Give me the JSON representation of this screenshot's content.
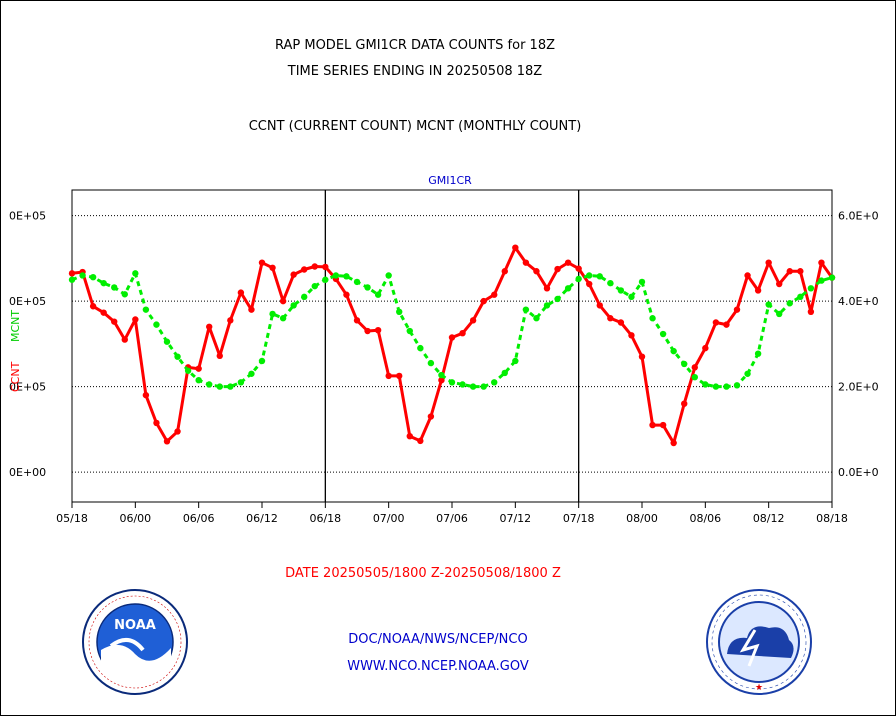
{
  "header": {
    "title_line1": "RAP MODEL GMI1CR DATA COUNTS for 18Z",
    "title_line2": "TIME SERIES ENDING IN 20250508 18Z",
    "subtitle": "CCNT (CURRENT COUNT) MCNT (MONTHLY COUNT)"
  },
  "footer": {
    "date_range": "DATE 20250505/1800 Z-20250508/1800 Z",
    "org": "DOC/NOAA/NWS/NCEP/NCO",
    "url": "WWW.NCO.NCEP.NOAA.GOV",
    "left_logo": "noaa-logo",
    "right_logo": "nws-logo",
    "noaa_logo_text": "NOAA"
  },
  "colors": {
    "ccnt": "#ff0000",
    "mcnt": "#00ee00",
    "label": "#0000cc",
    "axis": "#000000"
  },
  "chart_data": {
    "type": "line",
    "title": "GMI1CR",
    "ylabel_left_red": "CCNT",
    "ylabel_left_green": "MCNT",
    "x_tick_labels": [
      "05/18",
      "06/00",
      "06/06",
      "06/12",
      "06/18",
      "07/00",
      "07/06",
      "07/12",
      "07/18",
      "08/00",
      "08/06",
      "08/12",
      "08/18"
    ],
    "x_range_hours": [
      0,
      72
    ],
    "y_ticks_left": [
      "0E+00",
      "0E+05",
      "0E+05",
      "0E+05"
    ],
    "y_ticks_right": [
      "0.0E+0",
      "2.0E+0",
      "4.0E+0",
      "6.0E+0"
    ],
    "ylim": [
      -70000,
      660000
    ],
    "grid": "horizontal-dotted",
    "series": [
      {
        "name": "CCNT",
        "color": "#ff0000",
        "x": [
          0,
          1,
          2,
          3,
          4,
          5,
          6,
          7,
          8,
          9,
          10,
          11,
          12,
          13,
          14,
          15,
          16,
          17,
          18,
          19,
          20,
          21,
          22,
          23,
          24,
          25,
          26,
          27,
          28,
          29,
          30,
          31,
          32,
          33,
          34,
          35,
          36,
          37,
          38,
          39,
          40,
          41,
          42,
          43,
          44,
          45,
          46,
          47,
          48,
          49,
          50,
          51,
          52,
          53,
          54,
          55,
          56,
          57,
          58,
          59,
          60,
          61,
          62,
          63,
          64,
          65,
          66,
          67,
          68,
          69,
          70,
          71,
          72
        ],
        "values": [
          465000,
          468000,
          388000,
          373000,
          352000,
          310000,
          357000,
          180000,
          115000,
          72000,
          95000,
          245000,
          242000,
          340000,
          272000,
          355000,
          420000,
          380000,
          490000,
          478000,
          400000,
          462000,
          474000,
          481000,
          480000,
          452000,
          415000,
          355000,
          330000,
          332000,
          225000,
          225000,
          84000,
          73000,
          130000,
          215000,
          315000,
          325000,
          355000,
          400000,
          415000,
          470000,
          525000,
          490000,
          470000,
          430000,
          475000,
          490000,
          476000,
          440000,
          390000,
          360000,
          350000,
          320000,
          270000,
          110000,
          110000,
          68000,
          160000,
          245000,
          290000,
          350000,
          345000,
          380000,
          460000,
          425000,
          490000,
          440000,
          470000,
          470000,
          375000,
          490000,
          455000
        ]
      },
      {
        "name": "MCNT",
        "color": "#00ee00",
        "x": [
          0,
          1,
          2,
          3,
          4,
          5,
          6,
          7,
          8,
          9,
          10,
          11,
          12,
          13,
          14,
          15,
          16,
          17,
          18,
          19,
          20,
          21,
          22,
          23,
          24,
          25,
          26,
          27,
          28,
          29,
          30,
          31,
          32,
          33,
          34,
          35,
          36,
          37,
          38,
          39,
          40,
          41,
          42,
          43,
          44,
          45,
          46,
          47,
          48,
          49,
          50,
          51,
          52,
          53,
          54,
          55,
          56,
          57,
          58,
          59,
          60,
          61,
          62,
          63,
          64,
          65,
          66,
          67,
          68,
          69,
          70,
          71,
          72
        ],
        "values": [
          450000,
          460000,
          456000,
          442000,
          432000,
          416000,
          465000,
          380000,
          345000,
          305000,
          270000,
          237000,
          215000,
          205000,
          200000,
          200000,
          210000,
          230000,
          260000,
          370000,
          360000,
          390000,
          410000,
          435000,
          450000,
          460000,
          458000,
          445000,
          432000,
          415000,
          460000,
          375000,
          330000,
          290000,
          255000,
          227000,
          210000,
          205000,
          200000,
          200000,
          210000,
          232000,
          260000,
          380000,
          360000,
          390000,
          405000,
          430000,
          452000,
          460000,
          458000,
          442000,
          425000,
          410000,
          445000,
          360000,
          323000,
          283000,
          253000,
          222000,
          205000,
          200000,
          200000,
          203000,
          230000,
          277000,
          392000,
          370000,
          395000,
          410000,
          430000,
          448000,
          455000
        ]
      }
    ]
  }
}
